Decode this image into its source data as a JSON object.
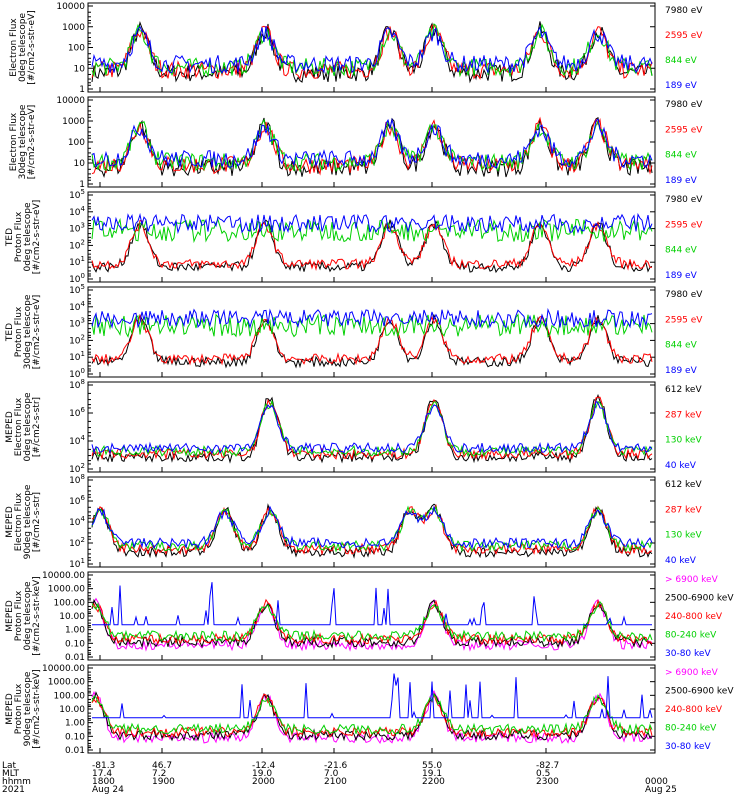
{
  "chart_data": [
    {
      "type": "line",
      "ylabel": [
        "Electron Flux",
        "0deg telescope",
        "[#/cm2-s-str-eV]"
      ],
      "y_ticks": [
        "10000",
        "1000",
        "100",
        "10",
        "1"
      ],
      "ylim": [
        1,
        10000
      ],
      "log_scale": true,
      "series": [
        {
          "name": "7980 eV",
          "color": "#000000"
        },
        {
          "name": "2595 eV",
          "color": "#ff0000"
        },
        {
          "name": "844 eV",
          "color": "#00d000"
        },
        {
          "name": "189 eV",
          "color": "#0000ff"
        }
      ]
    },
    {
      "type": "line",
      "ylabel": [
        "Electron Flux",
        "30deg telescope",
        "[#/cm2-s-str-eV]"
      ],
      "y_ticks": [
        "10000",
        "1000",
        "100",
        "10",
        "1"
      ],
      "ylim": [
        1,
        10000
      ],
      "log_scale": true,
      "series": [
        {
          "name": "7980 eV",
          "color": "#000000"
        },
        {
          "name": "2595 eV",
          "color": "#ff0000"
        },
        {
          "name": "844 eV",
          "color": "#00d000"
        },
        {
          "name": "189 eV",
          "color": "#0000ff"
        }
      ]
    },
    {
      "type": "line",
      "ylabel": [
        "TED",
        "Proton Flux",
        "0deg telescope",
        "[#/cm2-s-str-eV]"
      ],
      "y_ticks": [
        "10^5",
        "10^4",
        "10^3",
        "10^2",
        "10^1",
        "10^0"
      ],
      "ylim": [
        1,
        100000
      ],
      "log_scale": true,
      "series": [
        {
          "name": "7980 eV",
          "color": "#000000"
        },
        {
          "name": "2595 eV",
          "color": "#ff0000"
        },
        {
          "name": "844 eV",
          "color": "#00d000"
        },
        {
          "name": "189 eV",
          "color": "#0000ff"
        }
      ]
    },
    {
      "type": "line",
      "ylabel": [
        "TED",
        "Proton Flux",
        "30deg telescope",
        "[#/cm2-s-str-eV]"
      ],
      "y_ticks": [
        "10^5",
        "10^4",
        "10^3",
        "10^2",
        "10^1",
        "10^0"
      ],
      "ylim": [
        1,
        100000
      ],
      "log_scale": true,
      "series": [
        {
          "name": "7980 eV",
          "color": "#000000"
        },
        {
          "name": "2595 eV",
          "color": "#ff0000"
        },
        {
          "name": "844 eV",
          "color": "#00d000"
        },
        {
          "name": "189 eV",
          "color": "#0000ff"
        }
      ]
    },
    {
      "type": "line",
      "ylabel": [
        "MEPED",
        "Electron Flux",
        "0deg telescope",
        "[#/cm2-s-str]"
      ],
      "y_ticks": [
        "10^8",
        "10^6",
        "10^4",
        "10^2"
      ],
      "ylim": [
        10,
        100000000
      ],
      "log_scale": true,
      "series": [
        {
          "name": "612 keV",
          "color": "#000000"
        },
        {
          "name": "287 keV",
          "color": "#ff0000"
        },
        {
          "name": "130 keV",
          "color": "#00d000"
        },
        {
          "name": "40 keV",
          "color": "#0000ff"
        }
      ]
    },
    {
      "type": "line",
      "ylabel": [
        "MEPED",
        "Electron Flux",
        "90deg telescope",
        "[#/cm2-s-str]"
      ],
      "y_ticks": [
        "10^8",
        "10^6",
        "10^4",
        "10^2",
        "10^1"
      ],
      "ylim": [
        10,
        100000000
      ],
      "log_scale": true,
      "series": [
        {
          "name": "612 keV",
          "color": "#000000"
        },
        {
          "name": "287 keV",
          "color": "#ff0000"
        },
        {
          "name": "130 keV",
          "color": "#00d000"
        },
        {
          "name": "40 keV",
          "color": "#0000ff"
        }
      ]
    },
    {
      "type": "line",
      "ylabel": [
        "MEPED",
        "Proton Flux",
        "0deg telescope",
        "[#/cm2-s-str-keV]"
      ],
      "y_ticks": [
        "10000.00",
        "1000.00",
        "100.00",
        "10.00",
        "1.00",
        "0.10",
        "0.01"
      ],
      "ylim": [
        0.01,
        10000
      ],
      "log_scale": true,
      "series": [
        {
          "name": "> 6900 keV",
          "color": "#ff00ff"
        },
        {
          "name": "2500-6900 keV",
          "color": "#000000"
        },
        {
          "name": "240-800 keV",
          "color": "#ff0000"
        },
        {
          "name": "80-240 keV",
          "color": "#00d000"
        },
        {
          "name": "30-80 keV",
          "color": "#0000ff"
        }
      ]
    },
    {
      "type": "line",
      "ylabel": [
        "MEPED",
        "Proton Flux",
        "90deg telescope",
        "[#/cm2-s-str-keV]"
      ],
      "y_ticks": [
        "10000.00",
        "1000.00",
        "100.00",
        "10.00",
        "1.00",
        "0.10",
        "0.01"
      ],
      "ylim": [
        0.01,
        10000
      ],
      "log_scale": true,
      "series": [
        {
          "name": "> 6900 keV",
          "color": "#ff00ff"
        },
        {
          "name": "2500-6900 keV",
          "color": "#000000"
        },
        {
          "name": "240-800 keV",
          "color": "#ff0000"
        },
        {
          "name": "80-240 keV",
          "color": "#00d000"
        },
        {
          "name": "30-80 keV",
          "color": "#0000ff"
        }
      ]
    }
  ],
  "x_axis": {
    "row_labels": [
      "Lat",
      "MLT",
      "hhmm",
      "2021"
    ],
    "ticks": [
      {
        "lat": "-81.3",
        "mlt": "17.4",
        "hhmm": "1800",
        "date": "Aug 24"
      },
      {
        "lat": "46.7",
        "mlt": "7.2",
        "hhmm": "1900",
        "date": ""
      },
      {
        "lat": "-12.4",
        "mlt": "19.0",
        "hhmm": "2000",
        "date": ""
      },
      {
        "lat": "-21.6",
        "mlt": "7.0",
        "hhmm": "2100",
        "date": ""
      },
      {
        "lat": "55.0",
        "mlt": "19.1",
        "hhmm": "2200",
        "date": ""
      },
      {
        "lat": "-82.7",
        "mlt": "0.5",
        "hhmm": "2300",
        "date": ""
      },
      {
        "lat": "",
        "mlt": "",
        "hhmm": "0000",
        "date": "Aug 25"
      }
    ]
  }
}
